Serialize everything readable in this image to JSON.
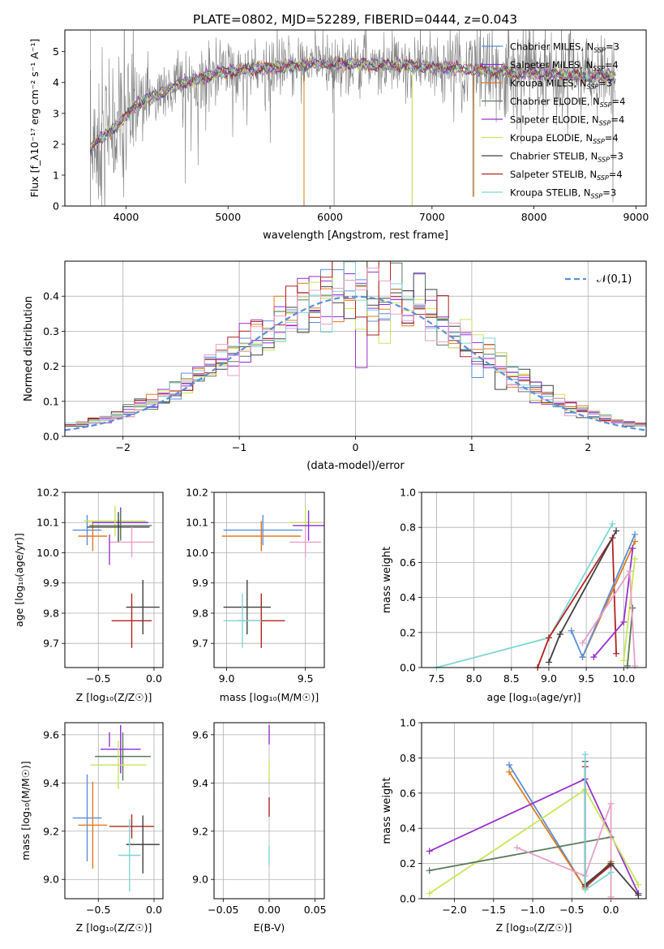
{
  "figure_title": "PLATE=0802, MJD=52289, FIBERID=0444, z=0.043",
  "model_colors": [
    "#5b8fd9",
    "#8a2be2",
    "#e07b1f",
    "#5a7a5a",
    "#9932cc",
    "#c8e65a",
    "#404040",
    "#b22222",
    "#7fd6d6"
  ],
  "chart_data": [
    {
      "id": "spectrum",
      "type": "line",
      "xlabel": "wavelength [Angstrom, rest frame]",
      "ylabel": "Flux [f_λ10^-17 erg cm^-2 s^-1 A^-1]",
      "xlim": [
        3400,
        9100
      ],
      "ylim": [
        0,
        5.7
      ],
      "xticks": [
        4000,
        5000,
        6000,
        7000,
        8000,
        9000
      ],
      "yticks": [
        0,
        1,
        2,
        3,
        4,
        5
      ],
      "legend_position": "top-right",
      "series": [
        {
          "name": "Chabrier MILES, N_SSP=3",
          "color": "#5b8fd9"
        },
        {
          "name": "Salpeter MILES, N_SSP=4",
          "color": "#8a2be2"
        },
        {
          "name": "Kroupa MILES, N_SSP=3",
          "color": "#e07b1f"
        },
        {
          "name": "Chabrier ELODIE, N_SSP=4",
          "color": "#5a7a5a"
        },
        {
          "name": "Salpeter ELODIE, N_SSP=4",
          "color": "#9932cc"
        },
        {
          "name": "Kroupa ELODIE, N_SSP=4",
          "color": "#c8e65a"
        },
        {
          "name": "Chabrier STELIB, N_SSP=3",
          "color": "#404040"
        },
        {
          "name": "Salpeter STELIB, N_SSP=4",
          "color": "#b22222"
        },
        {
          "name": "Kroupa STELIB, N_SSP=3",
          "color": "#7fd6d6"
        }
      ],
      "continuum_x": [
        3650,
        3800,
        3950,
        4100,
        4300,
        4500,
        4700,
        4900,
        5100,
        5300,
        5500,
        5700,
        5900,
        6100,
        6300,
        6500,
        6700,
        6900,
        7100,
        7300,
        7500,
        7700,
        7900,
        8100,
        8300,
        8500,
        8700,
        8800
      ],
      "continuum_y": [
        1.9,
        2.3,
        2.7,
        3.3,
        3.6,
        3.9,
        4.1,
        4.3,
        4.4,
        4.45,
        4.5,
        4.55,
        4.6,
        4.6,
        4.6,
        4.55,
        4.55,
        4.5,
        4.5,
        4.45,
        4.4,
        4.35,
        4.3,
        4.3,
        4.25,
        4.2,
        4.2,
        4.2
      ]
    },
    {
      "id": "residuals",
      "type": "histogram",
      "xlabel": "(data-model)/error",
      "ylabel": "Normed distribution",
      "xlim": [
        -2.5,
        2.5
      ],
      "ylim": [
        0,
        0.5
      ],
      "xticks": [
        -2,
        -1,
        0,
        1,
        2
      ],
      "yticks": [
        0.0,
        0.1,
        0.2,
        0.3,
        0.4
      ],
      "reference_curve": {
        "name": "𝒩(0,1)",
        "color": "#5b8fd9",
        "style": "dashed"
      },
      "bin_width": 0.1,
      "legend_position": "top-right"
    },
    {
      "id": "age_vs_Z",
      "type": "errorbar",
      "xlabel": "Z [log10(Z/Z⊙)]",
      "ylabel": "age  [log10(age/yr)]",
      "xlim": [
        -0.8,
        0.08
      ],
      "ylim": [
        9.62,
        10.2
      ],
      "xticks": [
        -0.5,
        0.0
      ],
      "yticks": [
        9.7,
        9.8,
        9.9,
        10.0,
        10.1,
        10.2
      ],
      "points": [
        {
          "x": -0.6,
          "y": 10.075,
          "xe": 0.13,
          "ye": 0.05,
          "c": "#5b8fd9"
        },
        {
          "x": -0.55,
          "y": 10.055,
          "xe": 0.13,
          "ye": 0.05,
          "c": "#e07b1f"
        },
        {
          "x": -0.3,
          "y": 10.1,
          "xe": 0.25,
          "ye": 0.05,
          "c": "#8a2be2"
        },
        {
          "x": -0.35,
          "y": 10.105,
          "xe": 0.28,
          "ye": 0.05,
          "c": "#c8e65a"
        },
        {
          "x": -0.3,
          "y": 10.09,
          "xe": 0.28,
          "ye": 0.05,
          "c": "#5a7a5a"
        },
        {
          "x": -0.32,
          "y": 10.085,
          "xe": 0.28,
          "ye": 0.05,
          "c": "#404040"
        },
        {
          "x": -0.2,
          "y": 10.035,
          "xe": 0.2,
          "ye": 0.05,
          "c": "#e8a0c8"
        },
        {
          "x": -0.4,
          "y": 10.01,
          "xe": 0.0,
          "ye": 0.05,
          "c": "#9932cc"
        },
        {
          "x": -0.1,
          "y": 9.82,
          "xe": 0.15,
          "ye": 0.09,
          "c": "#404040"
        },
        {
          "x": -0.2,
          "y": 9.775,
          "xe": 0.18,
          "ye": 0.09,
          "c": "#b22222"
        }
      ]
    },
    {
      "id": "age_vs_mass",
      "type": "errorbar",
      "xlabel": "mass [log10(M/M⊙)]",
      "ylabel": "",
      "xlim": [
        8.92,
        9.62
      ],
      "ylim": [
        9.62,
        10.2
      ],
      "xticks": [
        9.0,
        9.5
      ],
      "yticks": [
        9.7,
        9.8,
        9.9,
        10.0,
        10.1,
        10.2
      ],
      "points": [
        {
          "x": 9.23,
          "y": 10.075,
          "xe": 0.25,
          "ye": 0.05,
          "c": "#5b8fd9"
        },
        {
          "x": 9.22,
          "y": 10.055,
          "xe": 0.25,
          "ye": 0.05,
          "c": "#e07b1f"
        },
        {
          "x": 9.5,
          "y": 10.1,
          "xe": 0.1,
          "ye": 0.05,
          "c": "#c8e65a"
        },
        {
          "x": 9.52,
          "y": 10.09,
          "xe": 0.1,
          "ye": 0.05,
          "c": "#8a2be2"
        },
        {
          "x": 9.5,
          "y": 10.035,
          "xe": 0.1,
          "ye": 0.05,
          "c": "#e8a0c8"
        },
        {
          "x": 9.22,
          "y": 9.775,
          "xe": 0.15,
          "ye": 0.09,
          "c": "#b22222"
        },
        {
          "x": 9.13,
          "y": 9.82,
          "xe": 0.15,
          "ye": 0.09,
          "c": "#404040"
        },
        {
          "x": 9.1,
          "y": 9.775,
          "xe": 0.12,
          "ye": 0.09,
          "c": "#7fd6d6"
        }
      ]
    },
    {
      "id": "weight_vs_age",
      "type": "line",
      "xlabel": "age  [log10(age/yr)]",
      "ylabel": "mass weight",
      "xlim": [
        7.3,
        10.3
      ],
      "ylim": [
        0,
        1.0
      ],
      "xticks": [
        7.5,
        8.0,
        8.5,
        9.0,
        9.5,
        10.0
      ],
      "yticks": [
        0.0,
        0.2,
        0.4,
        0.6,
        0.8,
        1.0
      ],
      "series": [
        {
          "c": "#7fd6d6",
          "x": [
            7.5,
            9.0,
            9.85
          ],
          "y": [
            0.0,
            0.17,
            0.82
          ]
        },
        {
          "c": "#b22222",
          "x": [
            8.85,
            9.0,
            9.85,
            9.9
          ],
          "y": [
            0.0,
            0.17,
            0.74,
            0.08
          ]
        },
        {
          "c": "#404040",
          "x": [
            9.0,
            9.15,
            9.9
          ],
          "y": [
            0.03,
            0.19,
            0.78
          ]
        },
        {
          "c": "#e07b1f",
          "x": [
            9.45,
            10.15
          ],
          "y": [
            0.06,
            0.72
          ]
        },
        {
          "c": "#5b8fd9",
          "x": [
            9.3,
            9.45,
            10.15
          ],
          "y": [
            0.21,
            0.06,
            0.76
          ]
        },
        {
          "c": "#9932cc",
          "x": [
            9.6,
            10.0,
            10.12
          ],
          "y": [
            0.06,
            0.26,
            0.68
          ]
        },
        {
          "c": "#c8e65a",
          "x": [
            10.0,
            10.15
          ],
          "y": [
            0.04,
            0.62
          ]
        },
        {
          "c": "#5a7a5a",
          "x": [
            10.05,
            10.12
          ],
          "y": [
            0.01,
            0.34
          ]
        },
        {
          "c": "#e8a0c8",
          "x": [
            9.45,
            10.08,
            10.15
          ],
          "y": [
            0.14,
            0.55,
            0.01
          ]
        }
      ]
    },
    {
      "id": "mass_vs_Z",
      "type": "errorbar",
      "xlabel": "Z [log10(Z/Z⊙)]",
      "ylabel": "mass [log10(M/M⊙)]",
      "xlim": [
        -0.8,
        0.08
      ],
      "ylim": [
        8.92,
        9.65
      ],
      "xticks": [
        -0.5,
        0.0
      ],
      "yticks": [
        9.0,
        9.2,
        9.4,
        9.6
      ],
      "points": [
        {
          "x": -0.4,
          "y": 9.58,
          "xe": 0.0,
          "ye": 0.03,
          "c": "#9932cc"
        },
        {
          "x": -0.3,
          "y": 9.54,
          "xe": 0.18,
          "ye": 0.1,
          "c": "#8a2be2"
        },
        {
          "x": -0.28,
          "y": 9.51,
          "xe": 0.25,
          "ye": 0.1,
          "c": "#5a7a5a"
        },
        {
          "x": -0.32,
          "y": 9.475,
          "xe": 0.25,
          "ye": 0.1,
          "c": "#c8e65a"
        },
        {
          "x": -0.6,
          "y": 9.255,
          "xe": 0.13,
          "ye": 0.18,
          "c": "#5b8fd9"
        },
        {
          "x": -0.55,
          "y": 9.225,
          "xe": 0.13,
          "ye": 0.18,
          "c": "#e07b1f"
        },
        {
          "x": -0.2,
          "y": 9.22,
          "xe": 0.2,
          "ye": 0.05,
          "c": "#b22222"
        },
        {
          "x": -0.1,
          "y": 9.145,
          "xe": 0.15,
          "ye": 0.12,
          "c": "#404040"
        },
        {
          "x": -0.22,
          "y": 9.1,
          "xe": 0.1,
          "ye": 0.15,
          "c": "#7fd6d6"
        }
      ]
    },
    {
      "id": "ebv",
      "type": "errorbar",
      "xlabel": "E(B-V)",
      "ylabel": "",
      "xlim": [
        -0.06,
        0.06
      ],
      "ylim": [
        8.92,
        9.65
      ],
      "xticks": [
        -0.05,
        0.0,
        0.05
      ],
      "yticks": [
        9.0,
        9.2,
        9.4,
        9.6
      ],
      "points": [
        {
          "x": 0.0,
          "y": 9.6,
          "c": "#9932cc"
        },
        {
          "x": 0.0,
          "y": 9.45,
          "c": "#c8e65a"
        },
        {
          "x": 0.0,
          "y": 9.3,
          "c": "#b22222"
        },
        {
          "x": 0.0,
          "y": 9.1,
          "c": "#7fd6d6"
        }
      ]
    },
    {
      "id": "weight_vs_Z",
      "type": "line",
      "xlabel": "Z [log10(Z/Z⊙)]",
      "ylabel": "mass weight",
      "xlim": [
        -2.42,
        0.45
      ],
      "ylim": [
        0,
        1.0
      ],
      "xticks": [
        -2.0,
        -1.5,
        -1.0,
        -0.5,
        0.0
      ],
      "yticks": [
        0.0,
        0.2,
        0.4,
        0.6,
        0.8,
        1.0
      ],
      "series": [
        {
          "c": "#5b8fd9",
          "x": [
            -1.3,
            -0.33,
            0.0
          ],
          "y": [
            0.76,
            0.06,
            0.2
          ]
        },
        {
          "c": "#e07b1f",
          "x": [
            -1.3,
            -0.33,
            0.0
          ],
          "y": [
            0.72,
            0.06,
            0.21
          ]
        },
        {
          "c": "#9932cc",
          "x": [
            -2.32,
            -0.33,
            0.35
          ],
          "y": [
            0.27,
            0.68,
            0.03
          ]
        },
        {
          "c": "#c8e65a",
          "x": [
            -2.32,
            -0.33,
            0.35
          ],
          "y": [
            0.03,
            0.62,
            0.08
          ]
        },
        {
          "c": "#5a7a5a",
          "x": [
            -2.32,
            0.0
          ],
          "y": [
            0.16,
            0.35
          ]
        },
        {
          "c": "#e8a0c8",
          "x": [
            -1.2,
            -0.33,
            0.0,
            0.0
          ],
          "y": [
            0.29,
            0.13,
            0.54,
            0.01
          ]
        },
        {
          "c": "#b22222",
          "x": [
            -0.33,
            -0.33,
            0.0
          ],
          "y": [
            0.75,
            0.07,
            0.19
          ]
        },
        {
          "c": "#404040",
          "x": [
            -0.33,
            -0.33,
            0.0,
            0.35
          ],
          "y": [
            0.78,
            0.08,
            0.2,
            0.02
          ]
        },
        {
          "c": "#7fd6d6",
          "x": [
            -0.33,
            -0.33,
            0.0
          ],
          "y": [
            0.82,
            0.05,
            0.15
          ]
        }
      ]
    }
  ]
}
